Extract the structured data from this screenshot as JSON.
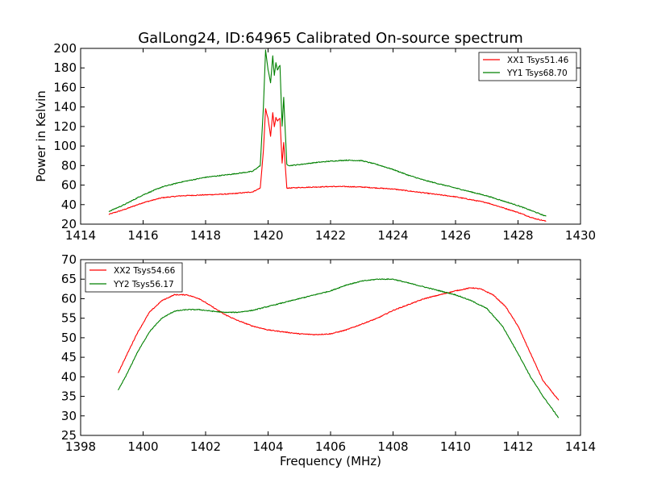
{
  "chart_data": [
    {
      "type": "line",
      "title": "GalLong24, ID:64965 Calibrated On-source spectrum",
      "xlabel": "",
      "ylabel": "Power in Kelvin",
      "xlim": [
        1414,
        1430
      ],
      "ylim": [
        20,
        200
      ],
      "xticks": [
        1414,
        1416,
        1418,
        1420,
        1422,
        1424,
        1426,
        1428,
        1430
      ],
      "yticks": [
        20,
        40,
        60,
        80,
        100,
        120,
        140,
        160,
        180,
        200
      ],
      "legend_position": "top-right",
      "series": [
        {
          "name": "XX1 Tsys51.46",
          "color": "#ff0000",
          "x": [
            1414.9,
            1415.4,
            1416.0,
            1416.6,
            1417.2,
            1418.0,
            1418.8,
            1419.5,
            1419.75,
            1419.85,
            1419.92,
            1420.0,
            1420.08,
            1420.15,
            1420.2,
            1420.25,
            1420.3,
            1420.38,
            1420.45,
            1420.5,
            1420.55,
            1420.6,
            1420.7,
            1421.0,
            1421.5,
            1422.0,
            1422.5,
            1423.0,
            1423.5,
            1424.0,
            1424.5,
            1425.0,
            1425.5,
            1426.0,
            1426.5,
            1427.0,
            1427.5,
            1428.0,
            1428.5,
            1428.9
          ],
          "y": [
            30,
            35,
            42,
            47,
            49,
            50,
            51,
            53,
            57,
            95,
            138,
            128,
            110,
            134,
            120,
            129,
            126,
            128,
            82,
            104,
            80,
            57,
            57,
            57.5,
            58,
            58.5,
            58.5,
            58,
            57,
            56,
            54,
            52,
            50,
            48,
            45,
            42,
            37,
            32,
            26,
            23
          ]
        },
        {
          "name": "YY1 Tsys68.70",
          "color": "#008000",
          "x": [
            1414.9,
            1415.4,
            1416.0,
            1416.6,
            1417.2,
            1418.0,
            1418.8,
            1419.5,
            1419.75,
            1419.85,
            1419.92,
            1420.0,
            1420.08,
            1420.15,
            1420.2,
            1420.25,
            1420.3,
            1420.38,
            1420.45,
            1420.5,
            1420.55,
            1420.6,
            1420.7,
            1421.0,
            1421.5,
            1422.0,
            1422.5,
            1423.0,
            1423.5,
            1424.0,
            1424.5,
            1425.0,
            1425.5,
            1426.0,
            1426.5,
            1427.0,
            1427.5,
            1428.0,
            1428.5,
            1428.9
          ],
          "y": [
            33,
            40,
            50,
            58,
            63,
            68,
            71,
            74,
            80,
            140,
            198,
            178,
            165,
            192,
            172,
            185,
            178,
            183,
            120,
            150,
            115,
            81,
            80,
            81,
            83,
            84.5,
            85.5,
            85,
            81,
            76,
            70,
            65,
            61,
            57,
            53,
            49,
            44,
            39,
            33,
            28
          ]
        }
      ]
    },
    {
      "type": "line",
      "title": "",
      "xlabel": "Frequency (MHz)",
      "ylabel": "",
      "xlim": [
        1398,
        1414
      ],
      "ylim": [
        25,
        70
      ],
      "xticks": [
        1398,
        1400,
        1402,
        1404,
        1406,
        1408,
        1410,
        1412,
        1414
      ],
      "yticks": [
        25,
        30,
        35,
        40,
        45,
        50,
        55,
        60,
        65,
        70
      ],
      "legend_position": "top-left",
      "series": [
        {
          "name": "XX2 Tsys54.66",
          "color": "#ff0000",
          "x": [
            1399.2,
            1399.5,
            1399.8,
            1400.2,
            1400.6,
            1401.0,
            1401.4,
            1401.8,
            1402.2,
            1402.6,
            1403.0,
            1403.5,
            1404.0,
            1404.5,
            1405.0,
            1405.5,
            1406.0,
            1406.5,
            1407.0,
            1407.5,
            1408.0,
            1408.5,
            1409.0,
            1409.5,
            1410.0,
            1410.5,
            1410.8,
            1411.2,
            1411.6,
            1412.0,
            1412.4,
            1412.8,
            1413.3
          ],
          "y": [
            41,
            46,
            51,
            56.5,
            59.5,
            61,
            61,
            60,
            58,
            56,
            54.5,
            53,
            52,
            51.5,
            51,
            50.8,
            51,
            52,
            53.5,
            55,
            57,
            58.5,
            60,
            61,
            62,
            62.8,
            62.5,
            61,
            58,
            53,
            46,
            39,
            34
          ]
        },
        {
          "name": "YY2 Tsys56.17",
          "color": "#008000",
          "x": [
            1399.2,
            1399.5,
            1399.8,
            1400.2,
            1400.6,
            1401.0,
            1401.4,
            1401.8,
            1402.2,
            1402.6,
            1403.0,
            1403.5,
            1404.0,
            1404.5,
            1405.0,
            1405.5,
            1406.0,
            1406.5,
            1407.0,
            1407.5,
            1408.0,
            1408.5,
            1409.0,
            1409.5,
            1410.0,
            1410.5,
            1411.0,
            1411.5,
            1412.0,
            1412.4,
            1412.8,
            1413.3
          ],
          "y": [
            36.5,
            41,
            46,
            51.5,
            55,
            56.8,
            57.2,
            57.2,
            56.8,
            56.5,
            56.5,
            57,
            58,
            59,
            60,
            61,
            62,
            63.5,
            64.5,
            65,
            65,
            64,
            63,
            62,
            61,
            59.5,
            57.5,
            53,
            46,
            40,
            35,
            29.5
          ]
        }
      ]
    }
  ]
}
